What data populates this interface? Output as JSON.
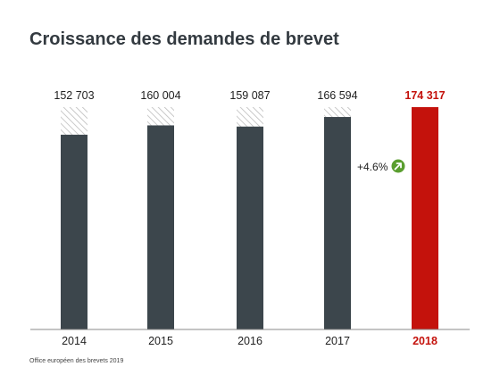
{
  "chart_data": {
    "type": "bar",
    "title": "Croissance des demandes de brevet",
    "categories": [
      "2014",
      "2015",
      "2016",
      "2017",
      "2018"
    ],
    "values": [
      152703,
      160004,
      159087,
      166594,
      174317
    ],
    "value_labels": [
      "152 703",
      "160 004",
      "159 087",
      "166 594",
      "174 317"
    ],
    "highlight_index": 4,
    "growth_annotation": "+4.6%",
    "xlabel": "",
    "ylabel": "",
    "grid": false,
    "legend": "none"
  },
  "colors": {
    "bar": "#3c464c",
    "highlight": "#c4120c",
    "growth_icon": "#5a9e2f",
    "hatch": "#bdbdbd"
  },
  "icons": {
    "growth": "up-right-arrow-icon"
  },
  "source": "Office européen des brevets 2019"
}
